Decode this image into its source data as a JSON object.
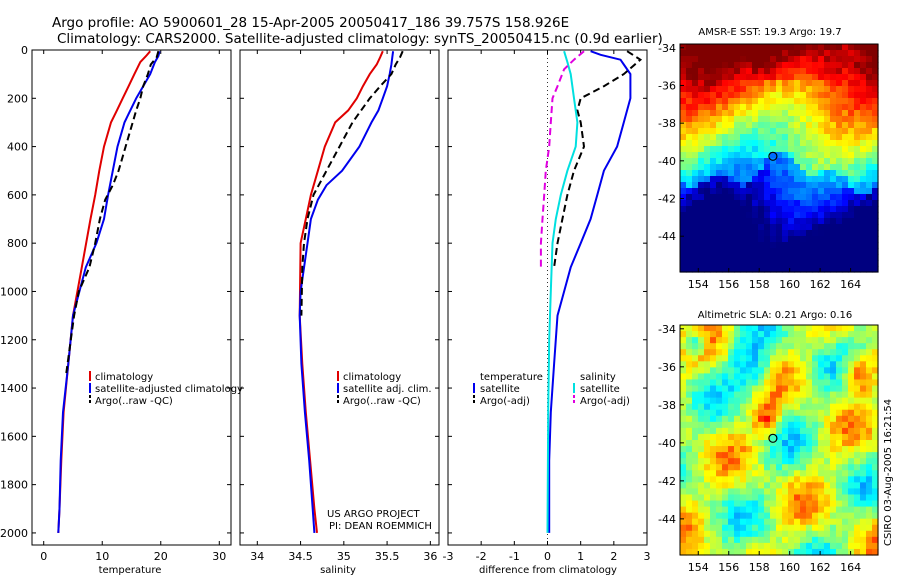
{
  "header": {
    "line1": "Argo profile: AO 5900601_28 15-Apr-2005 20050417_186 39.757S 158.926E",
    "line2": "Climatology: CARS2000. Satellite-adjusted climatology: synTS_20050415.nc (0.9d earlier)"
  },
  "side_text": "CSIRO 03-Aug-2005 16:21:54",
  "project": {
    "line1": "US ARGO PROJECT",
    "line2": "PI: DEAN ROEMMICH"
  },
  "colors": {
    "red": "#e00000",
    "blue": "#0000ee",
    "black": "#000000",
    "cyan": "#00e0e0",
    "magenta": "#e000e0"
  },
  "chart_data": [
    {
      "type": "line",
      "xlabel": "temperature",
      "xlim": [
        -2,
        32
      ],
      "ylim": [
        2050,
        0
      ],
      "xticks": [
        0,
        10,
        20,
        30
      ],
      "yticks": [
        0,
        200,
        400,
        600,
        800,
        1000,
        1200,
        1400,
        1600,
        1800,
        2000
      ],
      "legend": [
        "climatology",
        "satellite-adjusted climatology",
        "Argo(..raw -QC)"
      ],
      "series": [
        {
          "name": "climatology",
          "color": "red",
          "dash": false,
          "x": [
            18.2,
            17.5,
            16.5,
            15.5,
            14.5,
            13.5,
            12.5,
            11.5,
            10.3,
            9.5,
            8.8,
            8.0,
            6.5,
            5.0,
            4.2,
            3.4,
            3.0,
            2.7,
            2.5
          ],
          "y": [
            5,
            25,
            50,
            100,
            150,
            200,
            250,
            300,
            400,
            500,
            600,
            700,
            900,
            1100,
            1300,
            1500,
            1700,
            1900,
            2000
          ]
        },
        {
          "name": "satellite-adjusted climatology",
          "color": "blue",
          "dash": false,
          "x": [
            19.8,
            19.6,
            19.0,
            18.2,
            17.0,
            15.8,
            14.8,
            13.8,
            12.6,
            11.8,
            11.0,
            10.3,
            9.0,
            7.2,
            5.0,
            4.2,
            3.3,
            2.9,
            2.7,
            2.5
          ],
          "y": [
            5,
            25,
            50,
            100,
            150,
            200,
            250,
            300,
            400,
            500,
            600,
            700,
            800,
            900,
            1100,
            1300,
            1500,
            1700,
            1900,
            2000
          ]
        },
        {
          "name": "Argo(..raw -QC)",
          "color": "black",
          "dash": true,
          "x": [
            19.6,
            19.3,
            18.3,
            17.8,
            17.0,
            16.5,
            15.8,
            15.2,
            14.0,
            12.8,
            11.8,
            10.5,
            9.6,
            8.8,
            7.8,
            6.0,
            5.2,
            3.8
          ],
          "y": [
            5,
            30,
            60,
            100,
            150,
            200,
            250,
            300,
            400,
            500,
            560,
            620,
            700,
            800,
            900,
            1000,
            1100,
            1350
          ]
        }
      ]
    },
    {
      "type": "line",
      "xlabel": "salinity",
      "xlim": [
        33.8,
        36.1
      ],
      "ylim": [
        2050,
        0
      ],
      "xticks": [
        34,
        34.5,
        35,
        35.5,
        36
      ],
      "legend": [
        "climatology",
        "satellite adj. clim.",
        "Argo(..raw -QC)"
      ],
      "series": [
        {
          "name": "climatology",
          "color": "red",
          "dash": false,
          "x": [
            35.45,
            35.42,
            35.38,
            35.3,
            35.22,
            35.15,
            35.05,
            34.9,
            34.78,
            34.7,
            34.62,
            34.56,
            34.5,
            34.49,
            34.52,
            34.56,
            34.61,
            34.66,
            34.69
          ],
          "y": [
            5,
            30,
            60,
            100,
            150,
            200,
            250,
            300,
            400,
            500,
            600,
            700,
            800,
            1100,
            1300,
            1500,
            1700,
            1900,
            2000
          ]
        },
        {
          "name": "satellite adj. clim.",
          "color": "blue",
          "dash": false,
          "x": [
            35.57,
            35.56,
            35.55,
            35.53,
            35.5,
            35.45,
            35.4,
            35.32,
            35.18,
            34.98,
            34.8,
            34.7,
            34.62,
            34.58,
            34.5,
            34.49,
            34.51,
            34.55,
            34.6,
            34.64,
            34.66
          ],
          "y": [
            5,
            30,
            60,
            100,
            150,
            200,
            250,
            300,
            400,
            500,
            560,
            620,
            700,
            800,
            1000,
            1100,
            1300,
            1500,
            1700,
            1900,
            2000
          ]
        },
        {
          "name": "Argo(..raw -QC)",
          "color": "black",
          "dash": true,
          "x": [
            35.68,
            35.65,
            35.6,
            35.55,
            35.42,
            35.3,
            35.2,
            35.1,
            34.95,
            34.8,
            34.65,
            34.58,
            34.54,
            34.52,
            34.51
          ],
          "y": [
            5,
            30,
            60,
            100,
            150,
            200,
            250,
            300,
            400,
            500,
            600,
            700,
            800,
            900,
            1100
          ]
        }
      ]
    },
    {
      "type": "line",
      "xlabel": "difference from climatology",
      "xlim": [
        -3,
        3
      ],
      "ylim": [
        2050,
        0
      ],
      "xticks": [
        -3,
        -2,
        -1,
        0,
        1,
        2,
        3
      ],
      "legend_left": [
        "temperature",
        "satellite",
        "Argo(-adj)"
      ],
      "legend_right": [
        "salinity",
        "satellite",
        "Argo(-adj)"
      ],
      "series": [
        {
          "name": "satellite",
          "color": "blue",
          "dash": false,
          "x": [
            1.3,
            1.6,
            2.2,
            2.3,
            2.5,
            2.5,
            2.3,
            2.1,
            1.7,
            1.5,
            1.3,
            1.0,
            0.7,
            0.5,
            0.3,
            0.2,
            0.1,
            0.05,
            0.05,
            0.05
          ],
          "y": [
            5,
            20,
            40,
            60,
            100,
            200,
            300,
            400,
            500,
            600,
            700,
            800,
            900,
            1000,
            1100,
            1300,
            1500,
            1700,
            1900,
            2000
          ]
        },
        {
          "name": "Argo(-adj)",
          "color": "black",
          "dash": true,
          "x": [
            2.4,
            2.8,
            2.3,
            1.7,
            1.0,
            0.9,
            1.0,
            1.1,
            0.8,
            0.6,
            0.45,
            0.3,
            0.2
          ],
          "y": [
            5,
            40,
            100,
            150,
            200,
            250,
            300,
            400,
            500,
            600,
            700,
            800,
            900
          ]
        },
        {
          "name": "satellite",
          "color": "cyan",
          "dash": false,
          "x": [
            0.5,
            0.6,
            0.7,
            0.8,
            0.9,
            0.85,
            0.6,
            0.4,
            0.25,
            0.15,
            0.1,
            0.05,
            0.02,
            0.0
          ],
          "y": [
            5,
            50,
            100,
            200,
            300,
            400,
            500,
            600,
            700,
            800,
            1000,
            1200,
            1500,
            2000
          ]
        },
        {
          "name": "Argo(-adj)",
          "color": "magenta",
          "dash": true,
          "x": [
            1.1,
            0.8,
            0.5,
            0.3,
            0.15,
            0.1,
            0.05,
            -0.05,
            -0.1,
            -0.15,
            -0.2,
            -0.2
          ],
          "y": [
            5,
            40,
            80,
            150,
            200,
            300,
            400,
            500,
            600,
            700,
            800,
            900
          ]
        }
      ]
    },
    {
      "type": "heatmap",
      "title": "AMSR-E SST: 19.3 Argo: 19.7",
      "xlim": [
        152.8,
        165.8
      ],
      "ylim": [
        -45.9,
        -33.8
      ],
      "xticks": [
        154,
        156,
        158,
        160,
        162,
        164
      ],
      "yticks": [
        -34,
        -36,
        -38,
        -40,
        -42,
        -44
      ],
      "marker": [
        158.9,
        -39.76
      ]
    },
    {
      "type": "heatmap",
      "title": "Altimetric SLA: 0.21 Argo: 0.16",
      "xlim": [
        152.8,
        165.8
      ],
      "ylim": [
        -45.9,
        -33.8
      ],
      "xticks": [
        154,
        156,
        158,
        160,
        162,
        164
      ],
      "yticks": [
        -34,
        -36,
        -38,
        -40,
        -42,
        -44
      ],
      "marker": [
        158.9,
        -39.76
      ]
    }
  ]
}
